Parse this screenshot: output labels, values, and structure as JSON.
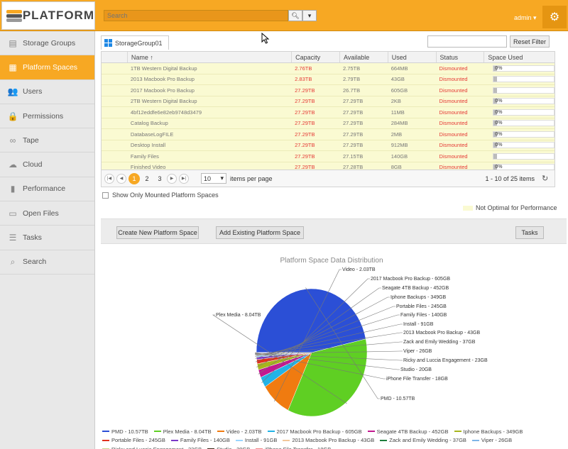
{
  "app": {
    "name": "PLATFORM",
    "brand_color": "#f7a823"
  },
  "topbar": {
    "search_placeholder": "Search",
    "user": "admin"
  },
  "sidebar": {
    "items": [
      {
        "label": "Storage Groups",
        "icon": "storage-icon",
        "active": false
      },
      {
        "label": "Platform Spaces",
        "icon": "platform-space-icon",
        "active": true
      },
      {
        "label": "Users",
        "icon": "users-icon",
        "active": false
      },
      {
        "label": "Permissions",
        "icon": "lock-icon",
        "active": false
      },
      {
        "label": "Tape",
        "icon": "tape-icon",
        "active": false
      },
      {
        "label": "Cloud",
        "icon": "cloud-icon",
        "active": false
      },
      {
        "label": "Performance",
        "icon": "bar-chart-icon",
        "active": false
      },
      {
        "label": "Open Files",
        "icon": "file-icon",
        "active": false
      },
      {
        "label": "Tasks",
        "icon": "tasks-icon",
        "active": false
      },
      {
        "label": "Search",
        "icon": "search-icon",
        "active": false
      }
    ]
  },
  "main": {
    "tab_label": "StorageGroup01",
    "filter_value": "",
    "reset_filter_label": "Reset Filter",
    "columns": [
      "Name",
      "Capacity",
      "Available",
      "Used",
      "Status",
      "Space Used"
    ],
    "sort_indicator": "↑",
    "rows": [
      {
        "name": "1TB Western Digital Backup",
        "capacity": "2.76TB",
        "available": "2.75TB",
        "used": "664MB",
        "status": "Dismounted",
        "space_used": "0%",
        "fill": 0.0
      },
      {
        "name": "2013 Macbook Pro Backup",
        "capacity": "2.83TB",
        "available": "2.79TB",
        "used": "43GB",
        "status": "Dismounted",
        "space_used": "",
        "fill": 0.015
      },
      {
        "name": "2017 Macbook Pro Backup",
        "capacity": "27.29TB",
        "available": "26.7TB",
        "used": "605GB",
        "status": "Dismounted",
        "space_used": "",
        "fill": 0.022
      },
      {
        "name": "2TB Western Digital Backup",
        "capacity": "27.29TB",
        "available": "27.29TB",
        "used": "2KB",
        "status": "Dismounted",
        "space_used": "0%",
        "fill": 0.0
      },
      {
        "name": "4bf12eddfe6e82eb9748d3479",
        "capacity": "27.29TB",
        "available": "27.29TB",
        "used": "11MB",
        "status": "Dismounted",
        "space_used": "0%",
        "fill": 0.0
      },
      {
        "name": "Catalog Backup",
        "capacity": "27.29TB",
        "available": "27.29TB",
        "used": "284MB",
        "status": "Dismounted",
        "space_used": "0%",
        "fill": 0.0
      },
      {
        "name": "DatabaseLogFILE",
        "capacity": "27.29TB",
        "available": "27.29TB",
        "used": "2MB",
        "status": "Dismounted",
        "space_used": "0%",
        "fill": 0.0
      },
      {
        "name": "Desktop Install",
        "capacity": "27.29TB",
        "available": "27.29TB",
        "used": "912MB",
        "status": "Dismounted",
        "space_used": "0%",
        "fill": 0.0
      },
      {
        "name": "Family Files",
        "capacity": "27.29TB",
        "available": "27.15TB",
        "used": "140GB",
        "status": "Dismounted",
        "space_used": "",
        "fill": 0.005
      },
      {
        "name": "Finished Video",
        "capacity": "27.29TB",
        "available": "27.28TB",
        "used": "8GB",
        "status": "Dismounted",
        "space_used": "0%",
        "fill": 0.0
      }
    ],
    "pager": {
      "pages": [
        "1",
        "2",
        "3"
      ],
      "current": "1",
      "page_size": "10",
      "items_per_page": "items per page",
      "range": "1 - 10 of 25 items"
    },
    "show_mounted_label": "Show Only Mounted Platform Spaces",
    "not_optimal_label": "Not Optimal for Performance",
    "buttons": {
      "create": "Create New Platform Space",
      "add": "Add Existing Platform Space",
      "tasks": "Tasks"
    }
  },
  "chart_data": {
    "type": "pie",
    "title": "Platform Space Data Distribution",
    "unit": "GB",
    "slices": [
      {
        "name": "PMD",
        "label": "PMD - 10.57TB",
        "value": 10570,
        "color": "#2b4fd6"
      },
      {
        "name": "Plex Media",
        "label": "Plex Media - 8.04TB",
        "value": 8040,
        "color": "#5fcf23"
      },
      {
        "name": "Video",
        "label": "Video - 2.03TB",
        "value": 2030,
        "color": "#f07b10"
      },
      {
        "name": "2017 Macbook Pro Backup",
        "label": "2017 Macbook Pro Backup - 605GB",
        "value": 605,
        "color": "#22b3e6"
      },
      {
        "name": "Seagate 4TB Backup",
        "label": "Seagate 4TB Backup - 452GB",
        "value": 452,
        "color": "#c2188f"
      },
      {
        "name": "Iphone Backups",
        "label": "Iphone Backups - 349GB",
        "value": 349,
        "color": "#a7b51c"
      },
      {
        "name": "Portable Files",
        "label": "Portable Files - 245GB",
        "value": 245,
        "color": "#e0301e"
      },
      {
        "name": "Family Files",
        "label": "Family Files - 140GB",
        "value": 140,
        "color": "#7a39c8"
      },
      {
        "name": "Install",
        "label": "Install - 91GB",
        "value": 91,
        "color": "#9ad6ff"
      },
      {
        "name": "2013 Macbook Pro Backup",
        "label": "2013 Macbook Pro Backup - 43GB",
        "value": 43,
        "color": "#f2c79a"
      },
      {
        "name": "Zack and Emily Wedding",
        "label": "Zack and Emily Wedding - 37GB",
        "value": 37,
        "color": "#1e7d3c"
      },
      {
        "name": "Viper",
        "label": "Viper - 26GB",
        "value": 26,
        "color": "#7fb6e8"
      },
      {
        "name": "Ricky and Luccia Engagement",
        "label": "Ricky and Luccia Engagement - 23GB",
        "value": 23,
        "color": "#c9d68a"
      },
      {
        "name": "Studio",
        "label": "Studio - 20GB",
        "value": 20,
        "color": "#3a2a1a"
      },
      {
        "name": "iPhone File Transfer",
        "label": "iPhone File Transfer - 18GB",
        "value": 18,
        "color": "#f08a8a"
      }
    ]
  }
}
